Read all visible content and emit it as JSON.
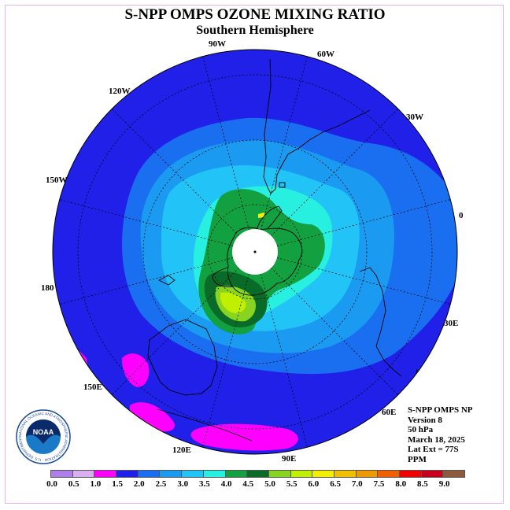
{
  "title": "S-NPP OMPS OZONE MIXING RATIO",
  "subtitle": "Southern Hemisphere",
  "longitude_labels": {
    "lon_90w": "90W",
    "lon_60w": "60W",
    "lon_120w": "120W",
    "lon_30w": "30W",
    "lon_150w": "150W",
    "lon_0": "0",
    "lon_180": "180",
    "lon_30e": "30E",
    "lon_150e": "150E",
    "lon_60e": "60E",
    "lon_120e": "120E",
    "lon_90e": "90E"
  },
  "info": {
    "instrument": "S-NPP OMPS NP",
    "version": "Version 8",
    "level": "50 hPa",
    "date": "March 18, 2025",
    "lat_ext": "Lat Ext = 77S",
    "units": "PPM"
  },
  "logo": {
    "text": "NOAA",
    "ring_text": "NATIONAL OCEANIC AND ATMOSPHERIC ADMINISTRATION · U.S. DEPARTMENT OF COMMERCE"
  },
  "colorbar": {
    "colors": [
      "#b07ee8",
      "#d8b0f0",
      "#ff00ff",
      "#2020e8",
      "#1a6ef0",
      "#1a9af0",
      "#22c4f8",
      "#28f0e0",
      "#12a040",
      "#0a6a28",
      "#88d420",
      "#c0f000",
      "#f0f000",
      "#f0c000",
      "#f09800",
      "#f06000",
      "#f00000",
      "#c80020",
      "#8c5a3c"
    ],
    "ticks": [
      "0.0",
      "0.5",
      "1.0",
      "1.5",
      "2.0",
      "2.5",
      "3.0",
      "3.5",
      "4.0",
      "4.5",
      "5.0",
      "5.5",
      "6.0",
      "6.5",
      "7.0",
      "7.5",
      "8.0",
      "8.5",
      "9.0"
    ]
  }
}
